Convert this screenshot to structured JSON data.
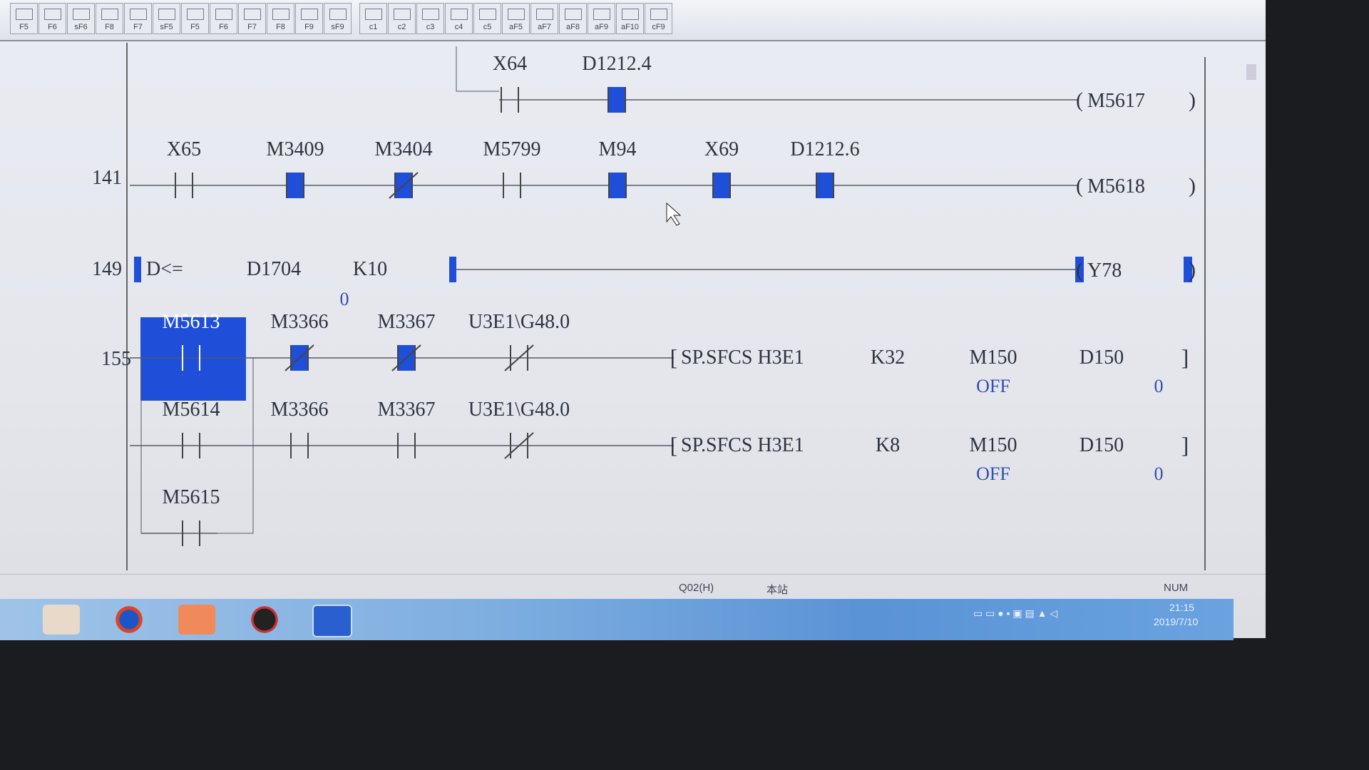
{
  "toolbar": {
    "buttons": [
      "F5",
      "F6",
      "sF6",
      "F8",
      "F7",
      "sF5",
      "F5",
      "F6",
      "F7",
      "F8",
      "F9",
      "sF9",
      "c1",
      "c2",
      "c3",
      "c4",
      "c5",
      "aF5",
      "aF7",
      "aF8",
      "aF9",
      "aF10",
      "cF9"
    ]
  },
  "colors": {
    "active": "#1f4fd8",
    "wire": "#555a66",
    "text": "#2e3340"
  },
  "rungs": [
    {
      "step": "",
      "contacts": [
        {
          "label": "X64",
          "type": "no",
          "on": false
        },
        {
          "label": "D1212.4",
          "type": "no",
          "on": true
        }
      ],
      "coil": "M5617"
    },
    {
      "step": "141",
      "contacts": [
        {
          "label": "X65",
          "type": "no",
          "on": false
        },
        {
          "label": "M3409",
          "type": "no",
          "on": true
        },
        {
          "label": "M3404",
          "type": "nc",
          "on": true
        },
        {
          "label": "M5799",
          "type": "no",
          "on": false
        },
        {
          "label": "M94",
          "type": "no",
          "on": true
        },
        {
          "label": "X69",
          "type": "no",
          "on": true
        },
        {
          "label": "D1212.6",
          "type": "no",
          "on": true
        }
      ],
      "coil": "M5618"
    },
    {
      "step": "149",
      "compare": {
        "op": "D<=",
        "s1": "D1704",
        "s2": "K10",
        "s1_value": "0"
      },
      "coil": "Y78",
      "on": true
    },
    {
      "step": "155",
      "branches": [
        {
          "contacts": [
            {
              "label": "M5613",
              "type": "no",
              "on": true,
              "selected": true
            },
            {
              "label": "M3366",
              "type": "nc",
              "on": true
            },
            {
              "label": "M3367",
              "type": "nc",
              "on": true
            },
            {
              "label": "U3E1\\G48.0",
              "type": "nc",
              "on": false
            }
          ],
          "instruction": {
            "name": "SP.SFCS H3E1",
            "args": [
              "K32",
              "M150",
              "D150"
            ],
            "values": [
              "",
              "OFF",
              "0"
            ]
          }
        },
        {
          "contacts": [
            {
              "label": "M5614",
              "type": "no",
              "on": false
            },
            {
              "label": "M3366",
              "type": "no",
              "on": false
            },
            {
              "label": "M3367",
              "type": "no",
              "on": false
            },
            {
              "label": "U3E1\\G48.0",
              "type": "nc",
              "on": false
            }
          ],
          "instruction": {
            "name": "SP.SFCS H3E1",
            "args": [
              "K8",
              "M150",
              "D150"
            ],
            "values": [
              "",
              "OFF",
              "0"
            ]
          }
        },
        {
          "contacts": [
            {
              "label": "M5615",
              "type": "no",
              "on": false
            }
          ]
        }
      ]
    }
  ],
  "status": {
    "plc": "Q02(H)",
    "station": "本站",
    "num": "NUM"
  },
  "taskbar": {
    "time": "21:15",
    "date": "2019/7/10"
  }
}
